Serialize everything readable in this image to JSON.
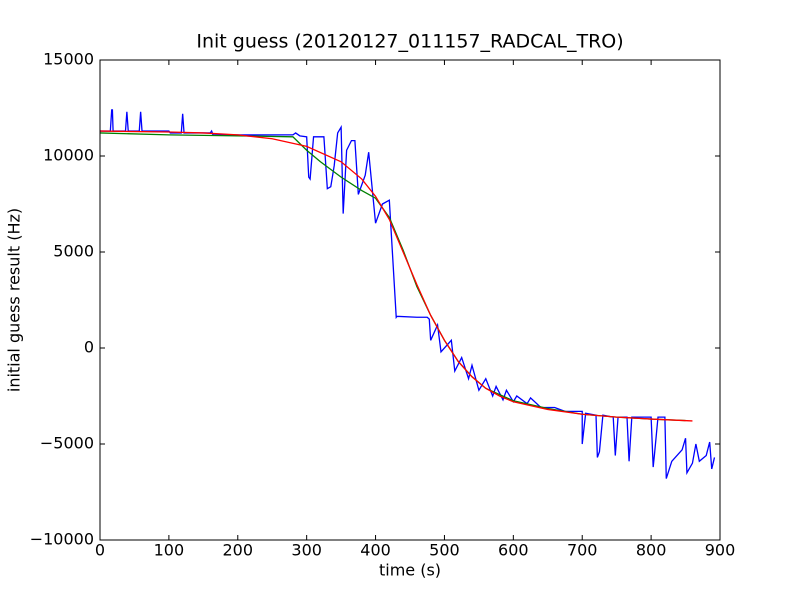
{
  "chart_data": {
    "type": "line",
    "title": "Init guess (20120127_011157_RADCAL_TRO)",
    "x_label": "time (s)",
    "y_label": "initial guess result (Hz)",
    "xlim": [
      0,
      900
    ],
    "xticks": [
      0,
      100,
      200,
      300,
      400,
      500,
      600,
      700,
      800,
      900
    ],
    "ylim": [
      -10000,
      15000
    ],
    "yticks": [
      {
        "value": -10000,
        "label": "−10000"
      },
      {
        "value": -5000,
        "label": "−5000"
      },
      0,
      5000,
      10000,
      15000
    ],
    "grid": false,
    "series": [
      {
        "color": "#0000ff",
        "x": [
          0,
          15,
          17,
          18,
          19,
          37,
          39,
          41,
          57,
          59,
          61,
          100,
          102,
          118,
          120,
          122,
          160,
          162,
          164,
          280,
          284,
          290,
          300,
          303,
          305,
          310,
          325,
          330,
          335,
          340,
          345,
          350,
          353,
          358,
          365,
          370,
          375,
          385,
          390,
          400,
          410,
          420,
          430,
          431,
          460,
          470,
          475,
          478,
          480,
          490,
          495,
          510,
          515,
          525,
          535,
          540,
          550,
          560,
          570,
          575,
          585,
          590,
          600,
          605,
          620,
          625,
          640,
          660,
          675,
          700,
          700,
          705,
          720,
          722,
          725,
          730,
          745,
          748,
          752,
          765,
          768,
          772,
          800,
          803,
          805,
          810,
          820,
          822,
          830,
          845,
          850,
          852,
          860,
          865,
          870,
          880,
          885,
          888,
          892
        ],
        "values": [
          11300,
          11300,
          12400,
          12400,
          11300,
          11300,
          12300,
          11300,
          11300,
          12300,
          11300,
          11300,
          11200,
          11200,
          12200,
          11200,
          11200,
          11300,
          11100,
          11100,
          11200,
          11050,
          11000,
          8900,
          8800,
          11000,
          11000,
          8300,
          8400,
          9500,
          11200,
          11500,
          7000,
          10300,
          10800,
          10800,
          8000,
          9000,
          10200,
          6500,
          7500,
          7700,
          1600,
          1650,
          1600,
          1600,
          1600,
          1500,
          400,
          1200,
          -200,
          400,
          -1200,
          -500,
          -1600,
          -900,
          -2200,
          -1600,
          -2500,
          -2000,
          -2700,
          -2200,
          -2800,
          -2500,
          -2900,
          -2600,
          -3100,
          -3100,
          -3300,
          -3300,
          -5000,
          -3400,
          -3500,
          -5700,
          -5400,
          -3500,
          -3600,
          -5600,
          -3600,
          -3600,
          -5900,
          -3600,
          -3600,
          -6200,
          -5500,
          -3600,
          -3600,
          -6800,
          -5900,
          -5300,
          -4700,
          -6500,
          -6000,
          -5000,
          -5900,
          -5600,
          -4900,
          -6300,
          -5700
        ]
      },
      {
        "color": "#008000",
        "x": [
          0,
          100,
          200,
          280,
          300,
          320,
          350,
          380,
          400,
          420,
          440,
          460,
          480,
          500,
          520,
          540,
          560,
          600,
          650,
          700,
          750,
          800,
          850
        ],
        "values": [
          11200,
          11100,
          11050,
          11000,
          10300,
          9700,
          8900,
          8200,
          7800,
          6800,
          5100,
          3200,
          1700,
          400,
          -700,
          -1500,
          -2100,
          -2750,
          -3150,
          -3450,
          -3600,
          -3700,
          -3780
        ]
      },
      {
        "color": "#ff0000",
        "x": [
          0,
          100,
          150,
          200,
          250,
          300,
          350,
          380,
          400,
          420,
          440,
          460,
          480,
          500,
          520,
          540,
          560,
          580,
          600,
          650,
          700,
          750,
          800,
          860
        ],
        "values": [
          11300,
          11250,
          11200,
          11100,
          10900,
          10500,
          9700,
          8800,
          7900,
          6700,
          5000,
          3300,
          1700,
          400,
          -700,
          -1500,
          -2100,
          -2500,
          -2800,
          -3200,
          -3450,
          -3600,
          -3700,
          -3800
        ]
      }
    ]
  }
}
